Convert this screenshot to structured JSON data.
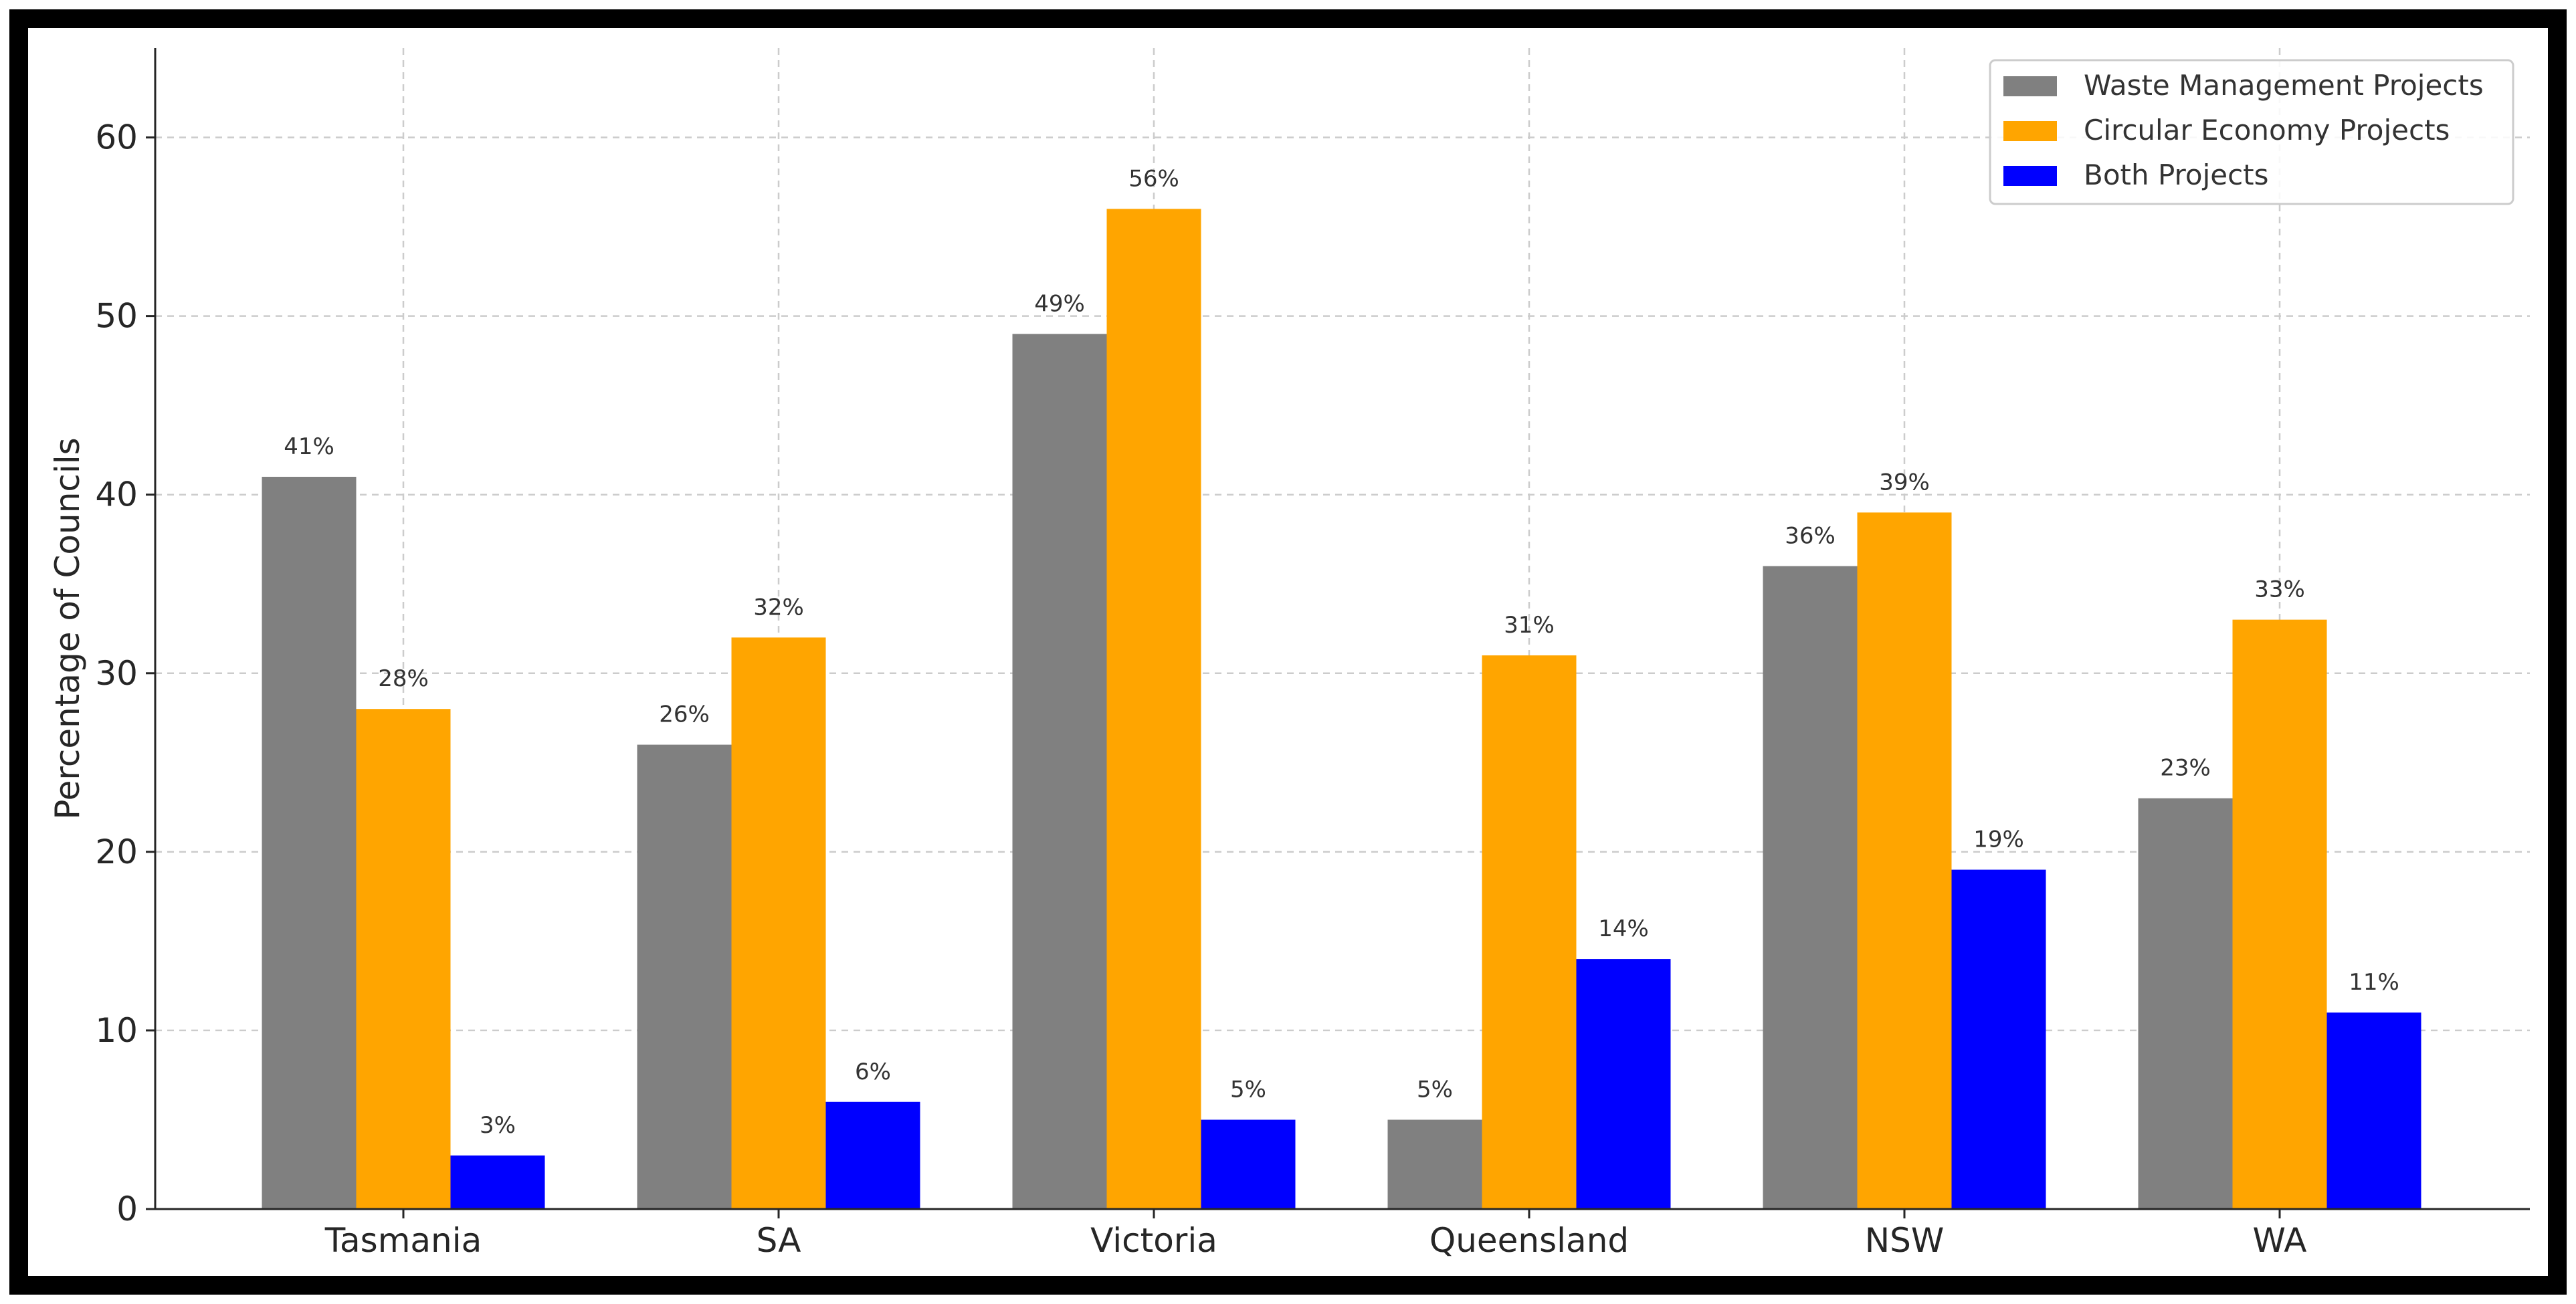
{
  "chart_data": {
    "type": "bar",
    "categories": [
      "Tasmania",
      "SA",
      "Victoria",
      "Queensland",
      "NSW",
      "WA"
    ],
    "series": [
      {
        "name": "Waste Management Projects",
        "color": "#808080",
        "values": [
          41,
          26,
          49,
          5,
          36,
          23
        ]
      },
      {
        "name": "Circular Economy Projects",
        "color": "#FFA500",
        "values": [
          28,
          32,
          56,
          31,
          39,
          33
        ]
      },
      {
        "name": "Both Projects",
        "color": "#0000FF",
        "values": [
          3,
          6,
          5,
          14,
          19,
          11
        ]
      }
    ],
    "value_suffix": "%",
    "title": "",
    "xlabel": "",
    "ylabel": "Percentage of Councils",
    "ylim": [
      0,
      65
    ],
    "yticks": [
      0,
      10,
      20,
      30,
      40,
      50,
      60
    ],
    "grid": true,
    "legend_position": "top-right"
  }
}
